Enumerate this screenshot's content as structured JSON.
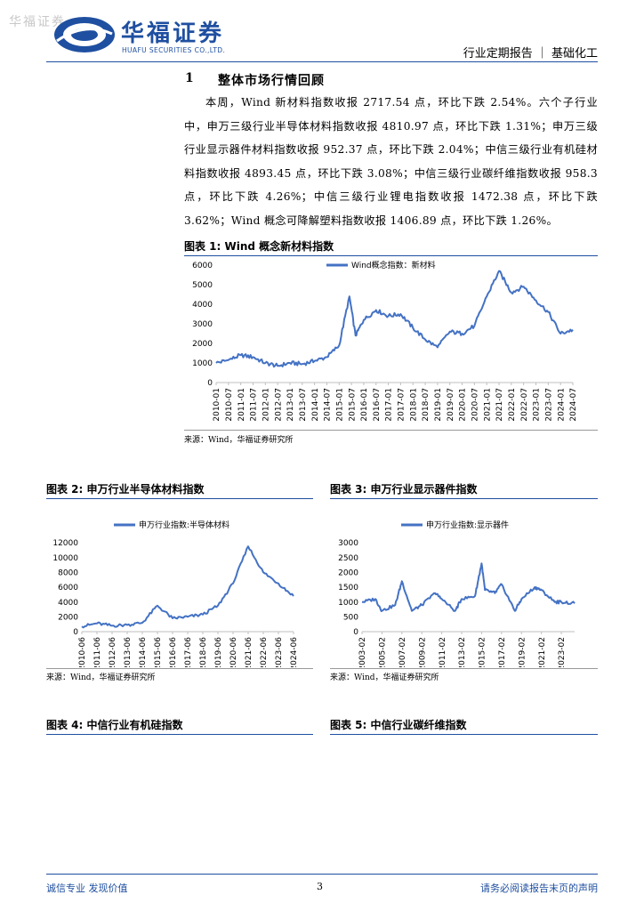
{
  "header": {
    "watermark": "华福证券",
    "brand_cn": "华福证券",
    "brand_en": "HUAFU SECURITIES CO.,LTD.",
    "report_type": "行业定期报告 ｜ 基础化工",
    "accent_color": "#1f4fa0"
  },
  "section": {
    "number": "1",
    "title": "整体市场行情回顾",
    "paragraph": "本周，Wind 新材料指数收报 2717.54 点，环比下跌 2.54%。六个子行业中，申万三级行业半导体材料指数收报 4810.97 点，环比下跌 1.31%；申万三级行业显示器件材料指数收报 952.37 点，环比下跌 2.04%；中信三级行业有机硅材料指数收报 4893.45 点，环比下跌 3.08%；中信三级行业碳纤维指数收报 958.3 点，环比下跌 4.26%；中信三级行业锂电指数收报 1472.38 点，环比下跌 3.62%；Wind 概念可降解塑料指数收报 1406.89 点，环比下跌 1.26%。"
  },
  "figures": {
    "fig1": {
      "title": "图表 1:  Wind 概念新材料指数",
      "source": "来源：Wind，华福证券研究所"
    },
    "fig2": {
      "title": "图表 2:  申万行业半导体材料指数",
      "source": "来源：Wind，华福证券研究所"
    },
    "fig3": {
      "title": "图表 3:  申万行业显示器件指数",
      "source": "来源：Wind，华福证券研究所"
    },
    "fig4": {
      "title": "图表 4:  中信行业有机硅指数"
    },
    "fig5": {
      "title": "图表 5:  中信行业碳纤维指数"
    }
  },
  "chart_data": [
    {
      "type": "line",
      "series": [
        {
          "name": "Wind概念指数：新材料",
          "x": [
            "2010-01",
            "2010-07",
            "2011-01",
            "2011-07",
            "2012-01",
            "2012-07",
            "2013-01",
            "2013-07",
            "2014-01",
            "2014-07",
            "2015-01",
            "2015-06",
            "2015-09",
            "2016-01",
            "2016-07",
            "2017-01",
            "2017-07",
            "2018-01",
            "2018-07",
            "2019-01",
            "2019-07",
            "2020-01",
            "2020-07",
            "2021-01",
            "2021-07",
            "2022-01",
            "2022-07",
            "2023-01",
            "2023-07",
            "2024-01",
            "2024-07"
          ],
          "values": [
            1000,
            1150,
            1400,
            1300,
            1000,
            850,
            1000,
            950,
            1100,
            1300,
            1900,
            4400,
            2400,
            3200,
            3700,
            3400,
            3500,
            2800,
            2200,
            1800,
            2600,
            2500,
            2900,
            4400,
            5700,
            4600,
            4900,
            4200,
            3600,
            2500,
            2700
          ]
        }
      ],
      "categories": [
        "2010-01",
        "2010-07",
        "2011-01",
        "2011-07",
        "2012-01",
        "2012-07",
        "2013-01",
        "2013-07",
        "2014-01",
        "2014-07",
        "2015-01",
        "2015-07",
        "2016-01",
        "2016-07",
        "2017-01",
        "2017-07",
        "2018-01",
        "2018-07",
        "2019-01",
        "2019-07",
        "2020-01",
        "2020-07",
        "2021-01",
        "2021-07",
        "2022-01",
        "2022-07",
        "2023-01",
        "2023-07",
        "2024-01",
        "2024-07"
      ],
      "yticks": [
        0,
        1000,
        2000,
        3000,
        4000,
        5000,
        6000
      ],
      "ylim": [
        0,
        6000
      ],
      "color": "#4472c4",
      "legend": "top"
    },
    {
      "type": "line",
      "series": [
        {
          "name": "申万行业指数:半导体材料",
          "x": [
            "2010-06",
            "2011-06",
            "2012-06",
            "2013-06",
            "2014-06",
            "2015-06",
            "2016-06",
            "2017-06",
            "2018-06",
            "2019-06",
            "2020-06",
            "2021-06",
            "2022-06",
            "2023-06",
            "2024-06"
          ],
          "values": [
            700,
            1100,
            800,
            900,
            1200,
            3500,
            1800,
            2000,
            2300,
            3500,
            6500,
            11500,
            8000,
            6500,
            4800
          ]
        }
      ],
      "categories": [
        "2010-06",
        "2011-06",
        "2012-06",
        "2013-06",
        "2014-06",
        "2015-06",
        "2016-06",
        "2017-06",
        "2018-06",
        "2019-06",
        "2020-06",
        "2021-06",
        "2022-06",
        "2023-06",
        "2024-06"
      ],
      "yticks": [
        0,
        2000,
        4000,
        6000,
        8000,
        10000,
        12000
      ],
      "ylim": [
        0,
        12000
      ],
      "color": "#4472c4",
      "legend": "top"
    },
    {
      "type": "line",
      "series": [
        {
          "name": "申万行业指数:显示器件",
          "x": [
            "2003-02",
            "2004-06",
            "2005-02",
            "2006-06",
            "2007-02",
            "2008-02",
            "2009-02",
            "2010-06",
            "2011-02",
            "2012-06",
            "2013-02",
            "2014-06",
            "2015-02",
            "2015-06",
            "2016-06",
            "2017-02",
            "2018-06",
            "2019-02",
            "2020-06",
            "2021-02",
            "2022-06",
            "2023-02",
            "2024-06"
          ],
          "values": [
            1000,
            1100,
            700,
            900,
            1700,
            700,
            900,
            1300,
            1100,
            700,
            1100,
            1200,
            2300,
            1400,
            1300,
            1600,
            700,
            1100,
            1500,
            1400,
            1000,
            1000,
            950
          ]
        }
      ],
      "categories": [
        "2003-02",
        "2005-02",
        "2007-02",
        "2009-02",
        "2011-02",
        "2013-02",
        "2015-02",
        "2017-02",
        "2019-02",
        "2021-02",
        "2023-02"
      ],
      "yticks": [
        0,
        500,
        1000,
        1500,
        2000,
        2500,
        3000
      ],
      "ylim": [
        0,
        3000
      ],
      "color": "#4472c4",
      "legend": "top"
    }
  ],
  "footer": {
    "left": "诚信专业  发现价值",
    "page_number": "3",
    "right": "请务必阅读报告末页的声明"
  }
}
